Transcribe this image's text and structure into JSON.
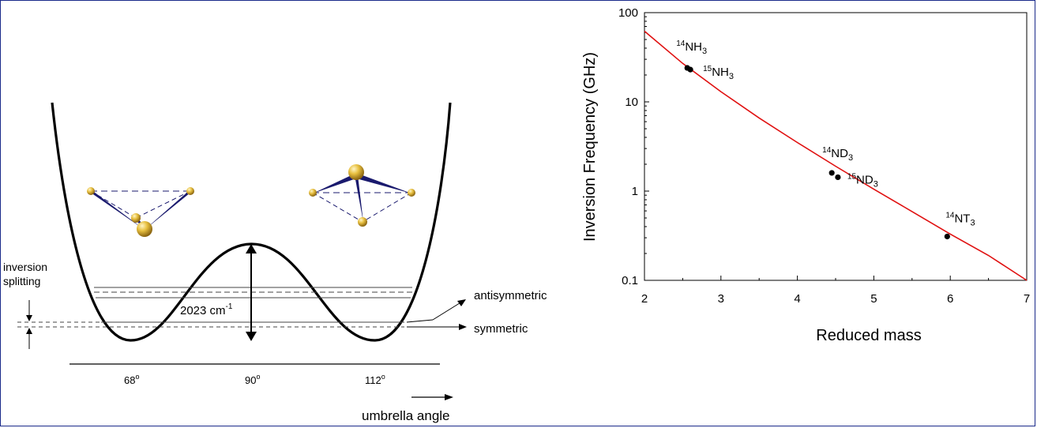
{
  "left_panel": {
    "inversion_splitting_line1": "inversion",
    "inversion_splitting_line2": "splitting",
    "barrier_label": "2023 cm",
    "barrier_exp": "-1",
    "antisymmetric_label": "antisymmetric",
    "symmetric_label": "symmetric",
    "ticks": [
      {
        "label": "68",
        "deg": "o"
      },
      {
        "label": "90",
        "deg": "o"
      },
      {
        "label": "112",
        "deg": "o"
      }
    ],
    "axis_label": "umbrella angle",
    "colors": {
      "atom": "#d4a52a",
      "bond": "#1a1a6e",
      "curve": "#000000"
    }
  },
  "chart_data": {
    "type": "line",
    "xlabel": "Reduced mass",
    "ylabel": "Inversion Frequency (GHz)",
    "xlim": [
      2,
      7
    ],
    "ylim": [
      0.1,
      100
    ],
    "yscale": "log",
    "x_ticks": [
      "2",
      "3",
      "4",
      "5",
      "6",
      "7"
    ],
    "y_ticks": [
      "0.1",
      "1",
      "10",
      "100"
    ],
    "curve_color": "#e01010",
    "curve": {
      "x": [
        2.0,
        2.5,
        3.0,
        3.5,
        4.0,
        4.5,
        5.0,
        5.5,
        6.0,
        6.5,
        7.0
      ],
      "y": [
        62,
        27,
        13,
        6.6,
        3.5,
        1.9,
        1.05,
        0.59,
        0.33,
        0.19,
        0.1
      ]
    },
    "points": [
      {
        "x": 2.56,
        "y": 24,
        "label": "NH",
        "iso": "14",
        "sub": "3"
      },
      {
        "x": 2.6,
        "y": 23,
        "label": "NH",
        "iso": "15",
        "sub": "3"
      },
      {
        "x": 4.45,
        "y": 1.6,
        "label": "ND",
        "iso": "14",
        "sub": "3"
      },
      {
        "x": 4.53,
        "y": 1.43,
        "label": "ND",
        "iso": "15",
        "sub": "3"
      },
      {
        "x": 5.96,
        "y": 0.31,
        "label": "NT",
        "iso": "14",
        "sub": "3"
      }
    ]
  }
}
